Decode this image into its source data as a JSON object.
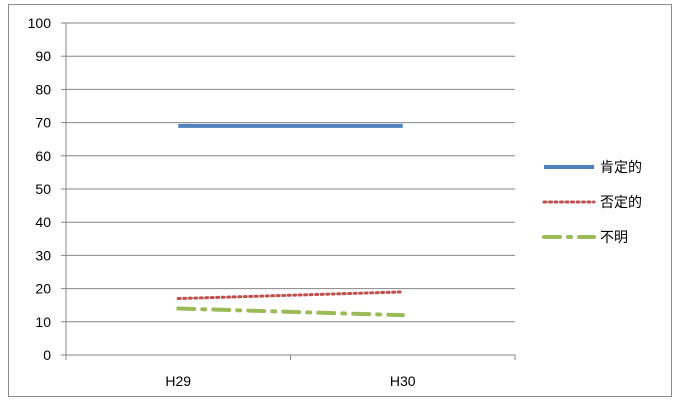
{
  "chart_data": {
    "type": "line",
    "categories": [
      "H29",
      "H30"
    ],
    "ylim": [
      0,
      100
    ],
    "yticks": [
      0,
      10,
      20,
      30,
      40,
      50,
      60,
      70,
      80,
      90,
      100
    ],
    "grid": true,
    "legend_position": "right",
    "series": [
      {
        "name": "肯定的",
        "values": [
          69,
          69
        ],
        "color": "#4f81bd",
        "style": "solid"
      },
      {
        "name": "否定的",
        "values": [
          17,
          19
        ],
        "color": "#c0504d",
        "style": "dotted"
      },
      {
        "name": "不明",
        "values": [
          14,
          12
        ],
        "color": "#9bbb59",
        "style": "dashdot"
      }
    ]
  }
}
